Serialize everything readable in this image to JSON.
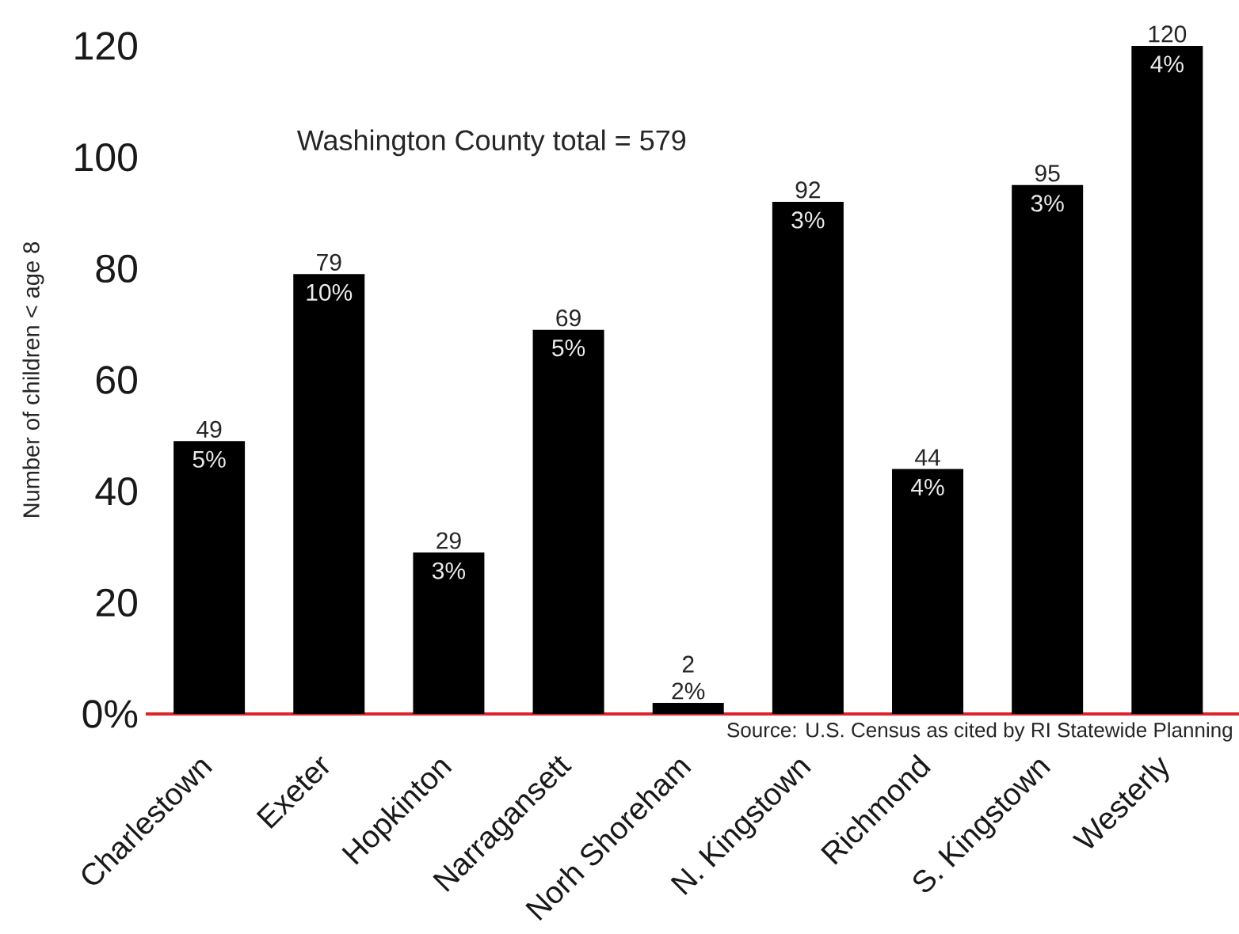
{
  "chart_data": {
    "type": "bar",
    "ylabel": "Number of children < age 8",
    "categories": [
      "Charlestown",
      "Exeter",
      "Hopkinton",
      "Narragansett",
      "Norh Shoreham",
      "N. Kingstown",
      "Richmond",
      "S. Kingstown",
      "Westerly"
    ],
    "values": [
      49,
      79,
      29,
      69,
      2,
      92,
      44,
      95,
      120
    ],
    "color": "#000000",
    "ylim": [
      0,
      120
    ],
    "yticks": [
      {
        "value": 0,
        "label": "0%"
      },
      20,
      40,
      60,
      80,
      100,
      120
    ],
    "data_labels": true,
    "annotations": [
      "Washington County total = 579",
      "Source: U.S. Census as cited by RI Statewide Planning",
      {
        "text": "5%",
        "x": "Charlestown",
        "y": 49
      },
      {
        "text": "10%",
        "x": "Exeter",
        "y": 79
      },
      {
        "text": "3%",
        "x": "Hopkinton",
        "y": 29
      },
      {
        "text": "5%",
        "x": "Narragansett",
        "y": 69
      },
      {
        "text": "2%",
        "x": "Norh Shoreham",
        "y": 2
      },
      {
        "text": "3%",
        "x": "N. Kingstown",
        "y": 92
      },
      {
        "text": "4%",
        "x": "Richmond",
        "y": 44
      },
      {
        "text": "3%",
        "x": "S. Kingstown",
        "y": 95
      },
      {
        "text": "4%",
        "x": "Westerly",
        "y": 120
      }
    ]
  }
}
